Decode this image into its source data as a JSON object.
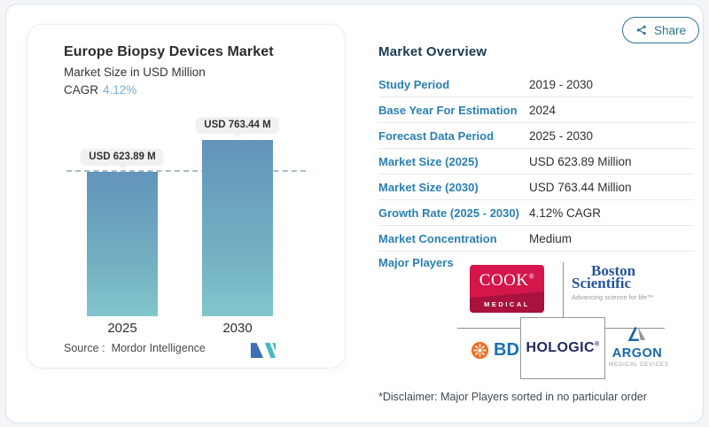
{
  "share": {
    "label": "Share"
  },
  "chart": {
    "title": "Europe Biopsy Devices Market",
    "subtitle": "Market Size in USD Million",
    "cagr_label": "CAGR",
    "cagr_value": "4.12%",
    "bar_labels": [
      "USD 623.89 M",
      "USD 763.44 M"
    ],
    "source_label": "Source :",
    "source_name": "Mordor Intelligence"
  },
  "chart_data": {
    "type": "bar",
    "title": "Europe Biopsy Devices Market",
    "subtitle": "Market Size in USD Million",
    "unit": "USD Million",
    "categories": [
      "2025",
      "2030"
    ],
    "values": [
      623.89,
      763.44
    ],
    "value_labels": [
      "USD 623.89 M",
      "USD 763.44 M"
    ],
    "cagr": "4.12%",
    "ylim": [
      0,
      800
    ],
    "grid": false,
    "legend": "none",
    "annotations": [
      "horizontal dashed reference line at 623.89"
    ]
  },
  "overview": {
    "heading": "Market Overview",
    "rows": [
      {
        "label": "Study Period",
        "value": "2019 - 2030"
      },
      {
        "label": "Base Year For Estimation",
        "value": "2024"
      },
      {
        "label": "Forecast Data Period",
        "value": "2025 - 2030"
      },
      {
        "label": "Market Size (2025)",
        "value": "USD 623.89 Million"
      },
      {
        "label": "Market Size (2030)",
        "value": "USD 763.44 Million"
      },
      {
        "label": "Growth Rate (2025 - 2030)",
        "value": "4.12% CAGR"
      },
      {
        "label": "Market Concentration",
        "value": "Medium"
      }
    ],
    "major_players_label": "Major Players",
    "players": [
      "Cook Medical",
      "Boston Scientific",
      "BD",
      "Hologic",
      "Argon Medical Devices"
    ],
    "disclaimer": "*Disclaimer: Major Players sorted in no particular order"
  },
  "logos": {
    "cook_top": "COOK",
    "cook_reg": "®",
    "cook_bottom": "MEDICAL",
    "boston_line1": "Boston",
    "boston_line2": "Scientific",
    "boston_tagline": "Advancing science for life™",
    "bd": "BD",
    "hologic": "HOLOGIC",
    "hologic_reg": "®",
    "argon": "ARGON",
    "argon_sub": "MEDICAL DEVICES"
  },
  "icons": [
    "share-nodes-icon",
    "bd-burst-icon",
    "argon-triangle-icon",
    "mordor-intelligence-logo-icon"
  ],
  "colors": {
    "label_blue": "#2a80b0",
    "heading_navy": "#1b3a54",
    "bar_gradient_top": "#6295ba",
    "bar_gradient_bottom": "#82c6cc",
    "cagr_blue": "#79aed6",
    "share_teal": "#2f7396",
    "cook_red": "#d4164b",
    "boston_blue": "#24549c",
    "bd_orange": "#f26b21",
    "bd_blue": "#1a70b5",
    "hologic_navy": "#222a60",
    "argon_blue": "#1b67a6",
    "mordor_blue": "#3d6fb4",
    "mordor_teal": "#45b8c6"
  }
}
